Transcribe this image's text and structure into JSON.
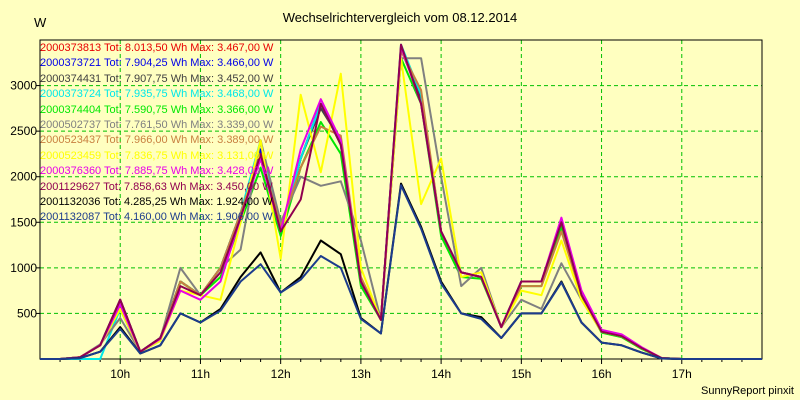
{
  "chart_data": {
    "type": "line",
    "title": "Wechselrichtervergleich vom 08.12.2014",
    "ylabel": "W",
    "footer": "SunnyReport pinxit",
    "ylim": [
      0,
      3500
    ],
    "y_ticks": [
      500,
      1000,
      1500,
      2000,
      2500,
      3000
    ],
    "x_ticks": [
      "10h",
      "11h",
      "12h",
      "13h",
      "14h",
      "15h",
      "16h",
      "17h"
    ],
    "x": [
      "09:00",
      "09:15",
      "09:30",
      "09:45",
      "10:00",
      "10:15",
      "10:30",
      "10:45",
      "11:00",
      "11:15",
      "11:30",
      "11:45",
      "12:00",
      "12:15",
      "12:30",
      "12:45",
      "13:00",
      "13:15",
      "13:30",
      "13:45",
      "14:00",
      "14:15",
      "14:30",
      "14:45",
      "15:00",
      "15:15",
      "15:30",
      "15:45",
      "16:00",
      "16:15",
      "16:30",
      "16:45",
      "17:00",
      "17:15",
      "17:30",
      "17:45",
      "18:00"
    ],
    "grid": true,
    "legend_position": "top-left",
    "series": [
      {
        "name": "2000373813 Tot: 8.013,50 Wh Max: 3.467,00 W",
        "color": "#e80000",
        "values": [
          0,
          0,
          20,
          150,
          650,
          80,
          230,
          850,
          700,
          1000,
          1600,
          2200,
          1400,
          2200,
          2800,
          2400,
          850,
          430,
          3400,
          2900,
          1400,
          950,
          900,
          350,
          850,
          850,
          1500,
          700,
          300,
          250,
          120,
          10,
          0,
          0,
          0,
          0,
          0
        ]
      },
      {
        "name": "2000373721 Tot: 7.904,25 Wh Max: 3.466,00 W",
        "color": "#0000e8",
        "values": [
          0,
          0,
          20,
          150,
          650,
          80,
          230,
          850,
          700,
          1000,
          1600,
          2300,
          1400,
          2200,
          2800,
          2350,
          850,
          430,
          3420,
          2850,
          1400,
          950,
          900,
          350,
          850,
          850,
          1500,
          700,
          300,
          250,
          120,
          10,
          0,
          0,
          0,
          0,
          0
        ]
      },
      {
        "name": "2000374431 Tot: 7.907,75 Wh Max: 3.452,00 W",
        "color": "#404040",
        "values": [
          0,
          0,
          20,
          150,
          650,
          80,
          230,
          850,
          700,
          1000,
          1600,
          2250,
          1400,
          2200,
          2750,
          2400,
          850,
          430,
          3400,
          2850,
          1400,
          950,
          900,
          350,
          850,
          850,
          1500,
          700,
          300,
          250,
          120,
          10,
          0,
          0,
          0,
          0,
          0
        ]
      },
      {
        "name": "2000373724 Tot: 7.935,75 Wh Max: 3.468,00 W",
        "color": "#00e8e8",
        "values": [
          0,
          0,
          0,
          0,
          550,
          80,
          200,
          850,
          700,
          1000,
          1600,
          2400,
          1400,
          2200,
          2800,
          2350,
          850,
          430,
          3450,
          2900,
          1400,
          950,
          900,
          350,
          850,
          850,
          1500,
          700,
          300,
          250,
          120,
          10,
          0,
          0,
          0,
          0,
          0
        ]
      },
      {
        "name": "2000374404 Tot: 7.590,75 Wh Max: 3.366,00 W",
        "color": "#00e800",
        "values": [
          0,
          0,
          20,
          150,
          550,
          80,
          220,
          850,
          700,
          900,
          1500,
          2100,
          1350,
          2100,
          2600,
          2250,
          800,
          430,
          3300,
          2800,
          1350,
          900,
          880,
          350,
          800,
          800,
          1450,
          680,
          290,
          240,
          110,
          10,
          0,
          0,
          0,
          0,
          0
        ]
      },
      {
        "name": "2000502737 Tot: 7.761,50 Wh Max: 3.339,00 W",
        "color": "#808080",
        "values": [
          0,
          0,
          20,
          160,
          450,
          80,
          220,
          1000,
          700,
          1000,
          1200,
          2400,
          1500,
          2000,
          1900,
          1950,
          1300,
          430,
          3300,
          3300,
          2000,
          800,
          1000,
          350,
          650,
          550,
          1050,
          650,
          300,
          250,
          120,
          10,
          0,
          0,
          0,
          0,
          0
        ]
      },
      {
        "name": "2000523437 Tot: 7.966,00 Wh Max: 3.389,00 W",
        "color": "#c88040",
        "values": [
          0,
          0,
          20,
          150,
          600,
          80,
          220,
          850,
          700,
          1000,
          1600,
          2250,
          1450,
          2100,
          2550,
          2450,
          900,
          430,
          3380,
          2950,
          1400,
          950,
          900,
          350,
          800,
          800,
          1400,
          700,
          300,
          250,
          120,
          10,
          0,
          0,
          0,
          0,
          0
        ]
      },
      {
        "name": "2000523459 Tot: 7.836,75 Wh Max: 3.131,00 W",
        "color": "#ffff00",
        "values": [
          0,
          0,
          20,
          150,
          550,
          80,
          200,
          750,
          700,
          650,
          1500,
          2400,
          1100,
          2900,
          2050,
          3130,
          1000,
          430,
          3300,
          1700,
          2200,
          900,
          950,
          350,
          750,
          700,
          1300,
          650,
          300,
          250,
          120,
          10,
          0,
          0,
          0,
          0,
          0
        ]
      },
      {
        "name": "2000376360 Tot: 7.885,75 Wh Max: 3.428,00 W",
        "color": "#e800e8",
        "values": [
          0,
          0,
          20,
          150,
          600,
          80,
          220,
          750,
          650,
          850,
          1550,
          2200,
          1400,
          2300,
          2850,
          2400,
          850,
          430,
          3430,
          2800,
          1400,
          950,
          900,
          350,
          850,
          850,
          1550,
          750,
          320,
          270,
          130,
          10,
          0,
          0,
          0,
          0,
          0
        ]
      },
      {
        "name": "2001129627 Tot: 7.858,63 Wh Max: 3.450,00 W",
        "color": "#900050",
        "values": [
          0,
          0,
          20,
          150,
          650,
          80,
          230,
          800,
          700,
          950,
          1550,
          2250,
          1400,
          1750,
          2800,
          2350,
          850,
          430,
          3450,
          2800,
          1400,
          950,
          900,
          350,
          850,
          850,
          1500,
          700,
          300,
          250,
          120,
          10,
          0,
          0,
          0,
          0,
          0
        ]
      },
      {
        "name": "2001132036 Tot: 4.285,25 Wh Max: 1.924,00 W",
        "color": "#000000",
        "values": [
          0,
          0,
          10,
          80,
          350,
          60,
          150,
          500,
          400,
          550,
          900,
          1170,
          730,
          900,
          1300,
          1150,
          450,
          280,
          1924,
          1450,
          850,
          500,
          460,
          230,
          500,
          500,
          850,
          400,
          180,
          150,
          70,
          5,
          0,
          0,
          0,
          0,
          0
        ]
      },
      {
        "name": "2001132087 Tot: 4.160,00 Wh Max: 1.906,00 W",
        "color": "#1c3c8c",
        "values": [
          0,
          0,
          10,
          80,
          330,
          60,
          150,
          500,
          400,
          530,
          850,
          1040,
          730,
          870,
          1130,
          1000,
          440,
          280,
          1906,
          1430,
          830,
          500,
          440,
          230,
          500,
          500,
          840,
          400,
          180,
          150,
          70,
          5,
          0,
          0,
          0,
          0,
          0
        ]
      }
    ]
  }
}
